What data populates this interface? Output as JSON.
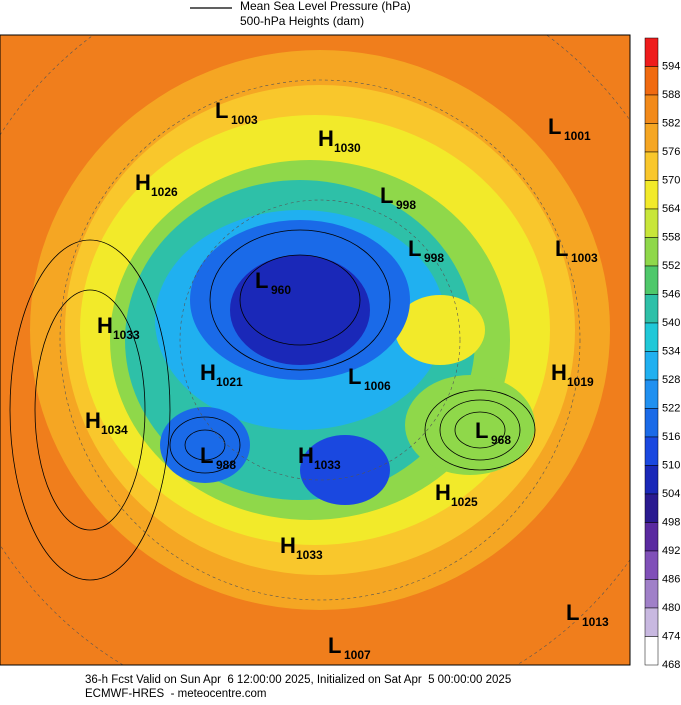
{
  "header": {
    "lines": [
      "Mean Sea Level Pressure (hPa)",
      "500-hPa Heights (dam)"
    ]
  },
  "colorbar": {
    "labels": [
      594,
      588,
      582,
      576,
      570,
      564,
      558,
      552,
      546,
      540,
      534,
      528,
      522,
      516,
      510,
      504,
      498,
      492,
      486,
      480,
      474,
      468
    ],
    "colors": [
      "#ee1c1c",
      "#f06a10",
      "#f28a1a",
      "#f5a623",
      "#f9c72c",
      "#f2ea2a",
      "#c8e63a",
      "#8fd84a",
      "#4fc86a",
      "#2ec0a8",
      "#20c8d8",
      "#20b0f0",
      "#2090f0",
      "#1a6ae8",
      "#1a48e0",
      "#1a28b8",
      "#2a1a90",
      "#5a2aa0",
      "#8050b8",
      "#a080c8",
      "#c8b8e0",
      "#ffffff"
    ]
  },
  "centers": [
    {
      "letter": "L",
      "value": 1003
    },
    {
      "letter": "H",
      "value": 1030
    },
    {
      "letter": "H",
      "value": 1026
    },
    {
      "letter": "L",
      "value": 998
    },
    {
      "letter": "L",
      "value": 1001
    },
    {
      "letter": "L",
      "value": 998
    },
    {
      "letter": "L",
      "value": 1003
    },
    {
      "letter": "L",
      "value": 960
    },
    {
      "letter": "H",
      "value": 1033
    },
    {
      "letter": "H",
      "value": 1021
    },
    {
      "letter": "L",
      "value": 1006
    },
    {
      "letter": "H",
      "value": 1019
    },
    {
      "letter": "L",
      "value": 968
    },
    {
      "letter": "H",
      "value": 1034
    },
    {
      "letter": "L",
      "value": 988
    },
    {
      "letter": "H",
      "value": 1033
    },
    {
      "letter": "H",
      "value": 1025
    },
    {
      "letter": "H",
      "value": 1033
    },
    {
      "letter": "L",
      "value": 1013
    },
    {
      "letter": "L",
      "value": 1007
    }
  ],
  "footer": {
    "lines": [
      "36-h Fcst Valid on Sun Apr  6 12:00:00 2025, Initialized on Sat Apr  5 00:00:00 2025",
      "ECMWF-HRES  - meteocentre.com"
    ]
  }
}
